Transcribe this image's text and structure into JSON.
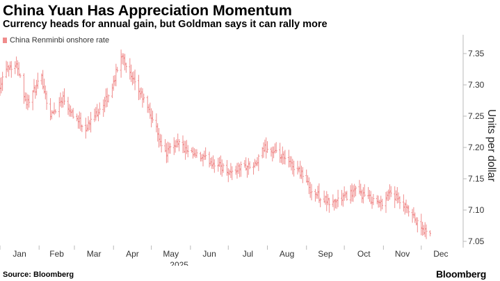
{
  "title": "China Yuan Has Appreciation Momentum",
  "subtitle": "Currency heads for annual gain, but Goldman says it can rally more",
  "source": "Source: Bloomberg",
  "brand": "Bloomberg",
  "chart_data": {
    "type": "ohlc",
    "xlabel": "2025",
    "ylabel": "Units per dollar",
    "ylim": [
      7.04,
      7.38
    ],
    "y_axis_side": "right",
    "legend_position": "top-left",
    "grid": false,
    "color": "#f08c8c",
    "xticks": [
      "Jan",
      "Feb",
      "Mar",
      "Apr",
      "May",
      "Jun",
      "Jul",
      "Aug",
      "Sep",
      "Oct",
      "Nov",
      "Dec"
    ],
    "yticks": [
      7.05,
      7.1,
      7.15,
      7.2,
      7.25,
      7.3,
      7.35
    ],
    "ytick_labels": [
      "7.05",
      "7.10",
      "7.15",
      "7.20",
      "7.25",
      "7.30",
      "7.35"
    ],
    "series": [
      {
        "name": "China Renminbi onshore rate",
        "anchors": [
          [
            "2025-01-01",
            7.3
          ],
          [
            "2025-01-06",
            7.33
          ],
          [
            "2025-01-15",
            7.33
          ],
          [
            "2025-01-22",
            7.27
          ],
          [
            "2025-02-03",
            7.31
          ],
          [
            "2025-02-10",
            7.25
          ],
          [
            "2025-02-20",
            7.28
          ],
          [
            "2025-03-01",
            7.25
          ],
          [
            "2025-03-10",
            7.23
          ],
          [
            "2025-03-20",
            7.26
          ],
          [
            "2025-03-28",
            7.28
          ],
          [
            "2025-04-08",
            7.35
          ],
          [
            "2025-04-15",
            7.31
          ],
          [
            "2025-04-24",
            7.28
          ],
          [
            "2025-05-03",
            7.24
          ],
          [
            "2025-05-12",
            7.19
          ],
          [
            "2025-05-22",
            7.21
          ],
          [
            "2025-05-30",
            7.19
          ],
          [
            "2025-06-15",
            7.18
          ],
          [
            "2025-06-25",
            7.17
          ],
          [
            "2025-07-03",
            7.16
          ],
          [
            "2025-07-12",
            7.17
          ],
          [
            "2025-07-22",
            7.17
          ],
          [
            "2025-07-30",
            7.2
          ],
          [
            "2025-08-15",
            7.18
          ],
          [
            "2025-08-28",
            7.16
          ],
          [
            "2025-09-05",
            7.13
          ],
          [
            "2025-09-20",
            7.11
          ],
          [
            "2025-09-30",
            7.12
          ],
          [
            "2025-10-10",
            7.13
          ],
          [
            "2025-10-20",
            7.12
          ],
          [
            "2025-10-30",
            7.11
          ],
          [
            "2025-11-06",
            7.13
          ],
          [
            "2025-11-15",
            7.11
          ],
          [
            "2025-11-24",
            7.09
          ],
          [
            "2025-12-01",
            7.07
          ],
          [
            "2025-12-08",
            7.06
          ]
        ]
      }
    ]
  }
}
